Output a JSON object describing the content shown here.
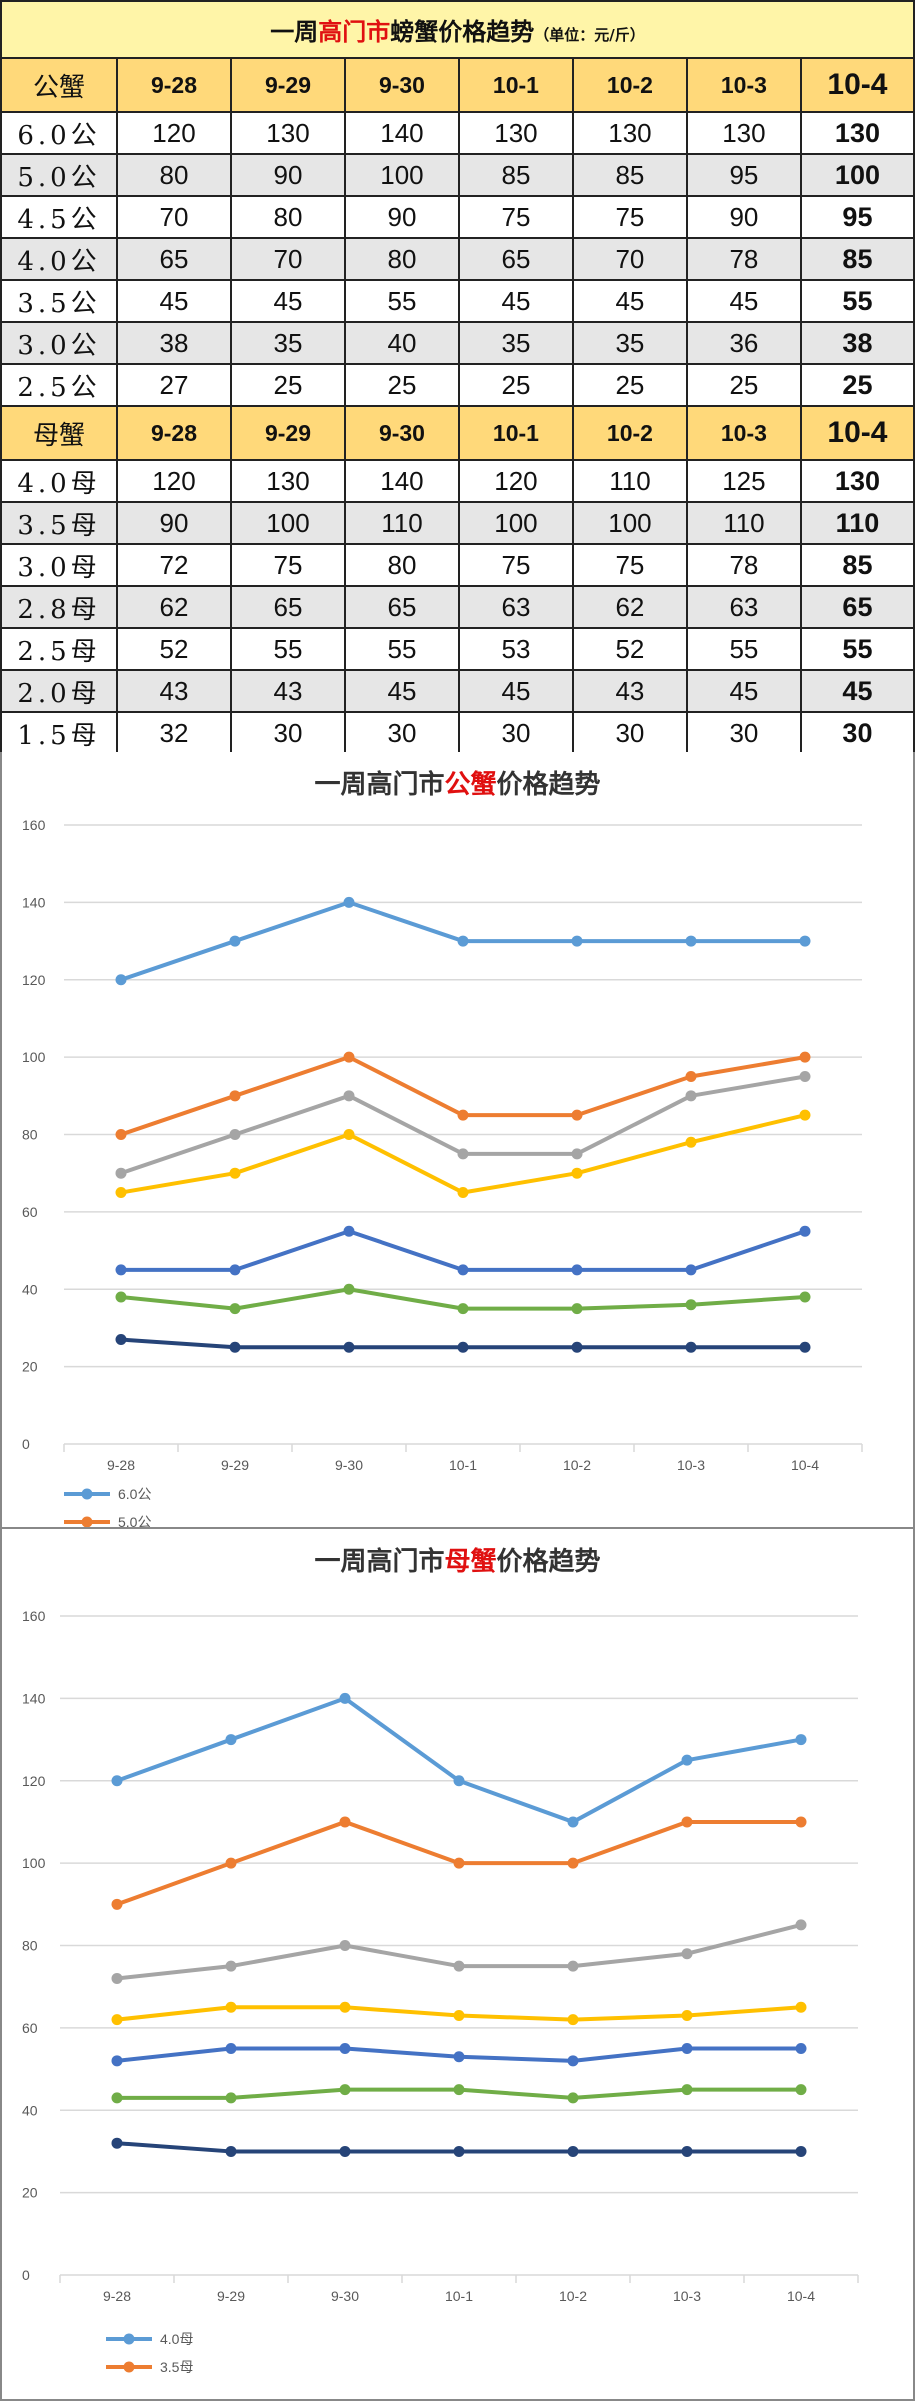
{
  "table": {
    "title_prefix": "一周",
    "title_red": "高门市",
    "title_suffix": "螃蟹价格趋势",
    "unit": "（单位：元/斤）",
    "male": {
      "header": [
        "公蟹",
        "9-28",
        "9-29",
        "9-30",
        "10-1",
        "10-2",
        "10-3",
        "10-4"
      ],
      "rows": [
        [
          "6.0公",
          "120",
          "130",
          "140",
          "130",
          "130",
          "130",
          "130"
        ],
        [
          "5.0公",
          "80",
          "90",
          "100",
          "85",
          "85",
          "95",
          "100"
        ],
        [
          "4.5公",
          "70",
          "80",
          "90",
          "75",
          "75",
          "90",
          "95"
        ],
        [
          "4.0公",
          "65",
          "70",
          "80",
          "65",
          "70",
          "78",
          "85"
        ],
        [
          "3.5公",
          "45",
          "45",
          "55",
          "45",
          "45",
          "45",
          "55"
        ],
        [
          "3.0公",
          "38",
          "35",
          "40",
          "35",
          "35",
          "36",
          "38"
        ],
        [
          "2.5公",
          "27",
          "25",
          "25",
          "25",
          "25",
          "25",
          "25"
        ]
      ]
    },
    "female": {
      "header": [
        "母蟹",
        "9-28",
        "9-29",
        "9-30",
        "10-1",
        "10-2",
        "10-3",
        "10-4"
      ],
      "rows": [
        [
          "4.0母",
          "120",
          "130",
          "140",
          "120",
          "110",
          "125",
          "130"
        ],
        [
          "3.5母",
          "90",
          "100",
          "110",
          "100",
          "100",
          "110",
          "110"
        ],
        [
          "3.0母",
          "72",
          "75",
          "80",
          "75",
          "75",
          "78",
          "85"
        ],
        [
          "2.8母",
          "62",
          "65",
          "65",
          "63",
          "62",
          "63",
          "65"
        ],
        [
          "2.5母",
          "52",
          "55",
          "55",
          "53",
          "52",
          "55",
          "55"
        ],
        [
          "2.0母",
          "43",
          "43",
          "45",
          "45",
          "43",
          "45",
          "45"
        ],
        [
          "1.5母",
          "32",
          "30",
          "30",
          "30",
          "30",
          "30",
          "30"
        ]
      ]
    }
  },
  "chart_data": [
    {
      "type": "line",
      "title_prefix": "一周高门市",
      "title_red": "公蟹",
      "title_suffix": "价格趋势",
      "categories": [
        "9-28",
        "9-29",
        "9-30",
        "10-1",
        "10-2",
        "10-3",
        "10-4"
      ],
      "ylim": [
        0,
        160
      ],
      "yticks": [
        "0",
        "20",
        "40",
        "60",
        "80",
        "100",
        "120",
        "140",
        "160"
      ],
      "grid": true,
      "legend_position": "bottom-left",
      "series": [
        {
          "name": "6.0公",
          "color": "#5b9bd5",
          "values": [
            120,
            130,
            140,
            130,
            130,
            130,
            130
          ]
        },
        {
          "name": "5.0公",
          "color": "#ed7d31",
          "values": [
            80,
            90,
            100,
            85,
            85,
            95,
            100
          ]
        },
        {
          "color": "#a5a5a5",
          "values": [
            70,
            80,
            90,
            75,
            75,
            90,
            95
          ]
        },
        {
          "color": "#ffc000",
          "values": [
            65,
            70,
            80,
            65,
            70,
            78,
            85
          ]
        },
        {
          "color": "#4472c4",
          "values": [
            45,
            45,
            55,
            45,
            45,
            45,
            55
          ]
        },
        {
          "color": "#70ad47",
          "values": [
            38,
            35,
            40,
            35,
            35,
            36,
            38
          ]
        },
        {
          "color": "#264478",
          "values": [
            27,
            25,
            25,
            25,
            25,
            25,
            25
          ]
        }
      ]
    },
    {
      "type": "line",
      "title_prefix": "一周高门市",
      "title_red": "母蟹",
      "title_suffix": "价格趋势",
      "categories": [
        "9-28",
        "9-29",
        "9-30",
        "10-1",
        "10-2",
        "10-3",
        "10-4"
      ],
      "ylim": [
        0,
        160
      ],
      "yticks": [
        "0",
        "20",
        "40",
        "60",
        "80",
        "100",
        "120",
        "140",
        "160"
      ],
      "grid": true,
      "legend_position": "bottom-left",
      "series": [
        {
          "name": "4.0母",
          "color": "#5b9bd5",
          "values": [
            120,
            130,
            140,
            120,
            110,
            125,
            130
          ]
        },
        {
          "name": "3.5母",
          "color": "#ed7d31",
          "values": [
            90,
            100,
            110,
            100,
            100,
            110,
            110
          ]
        },
        {
          "color": "#a5a5a5",
          "values": [
            72,
            75,
            80,
            75,
            75,
            78,
            85
          ]
        },
        {
          "color": "#ffc000",
          "values": [
            62,
            65,
            65,
            63,
            62,
            63,
            65
          ]
        },
        {
          "color": "#4472c4",
          "values": [
            52,
            55,
            55,
            53,
            52,
            55,
            55
          ]
        },
        {
          "color": "#70ad47",
          "values": [
            43,
            43,
            45,
            45,
            43,
            45,
            45
          ]
        },
        {
          "color": "#264478",
          "values": [
            32,
            30,
            30,
            30,
            30,
            30,
            30
          ]
        }
      ]
    }
  ]
}
